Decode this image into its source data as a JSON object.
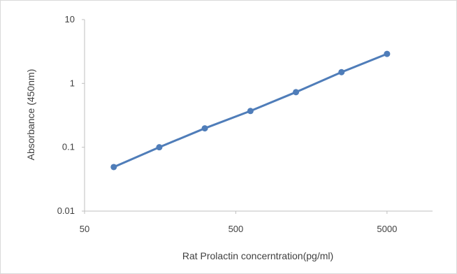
{
  "chart_data": {
    "type": "line",
    "title": "",
    "xlabel": "Rat Prolactin concerntration(pg/ml)",
    "ylabel": "Absorbance (450nm)",
    "x_scale": "log",
    "y_scale": "log",
    "xlim": [
      50,
      10000
    ],
    "ylim": [
      0.01,
      10
    ],
    "x_ticks": [
      "50",
      "500",
      "5000"
    ],
    "y_ticks": [
      "10",
      "1",
      "0.1",
      "0.01"
    ],
    "grid": false,
    "legend": "none",
    "series": [
      {
        "color": "#4f7db9",
        "x": [
          78,
          156,
          312,
          625,
          1250,
          2500,
          5000
        ],
        "y": [
          0.049,
          0.1,
          0.198,
          0.37,
          0.73,
          1.5,
          2.9
        ]
      }
    ]
  }
}
